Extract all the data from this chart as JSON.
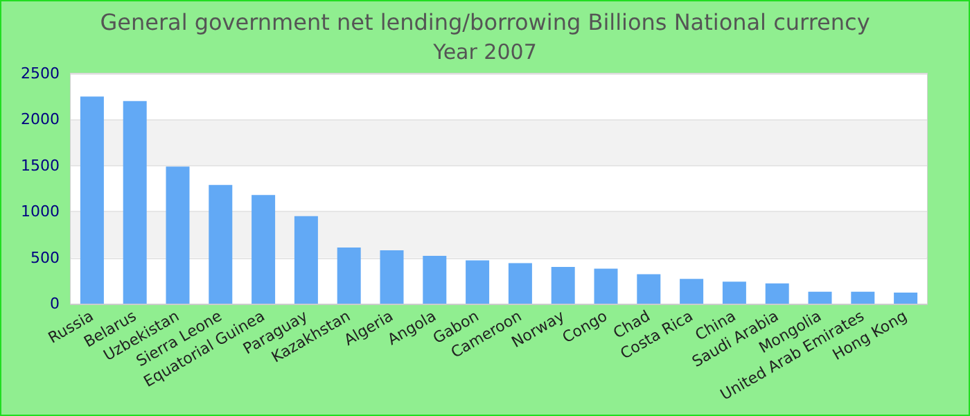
{
  "chart_data": {
    "type": "bar",
    "title": "General government net lending/borrowing Billions National currency",
    "subtitle": "Year 2007",
    "categories": [
      "Russia",
      "Belarus",
      "Uzbekistan",
      "Sierra Leone",
      "Equatorial Guinea",
      "Paraguay",
      "Kazakhstan",
      "Algeria",
      "Angola",
      "Gabon",
      "Cameroon",
      "Norway",
      "Congo",
      "Chad",
      "Costa Rica",
      "China",
      "Saudi Arabia",
      "Mongolia",
      "United Arab Emirates",
      "Hong Kong"
    ],
    "values": [
      2250,
      2200,
      1490,
      1290,
      1180,
      950,
      610,
      580,
      520,
      470,
      440,
      400,
      380,
      320,
      270,
      240,
      220,
      130,
      130,
      120
    ],
    "color": "#62a9f5",
    "ylim": [
      0,
      2500
    ],
    "yticks": [
      0,
      500,
      1000,
      1500,
      2000,
      2500
    ],
    "grid": "y"
  }
}
